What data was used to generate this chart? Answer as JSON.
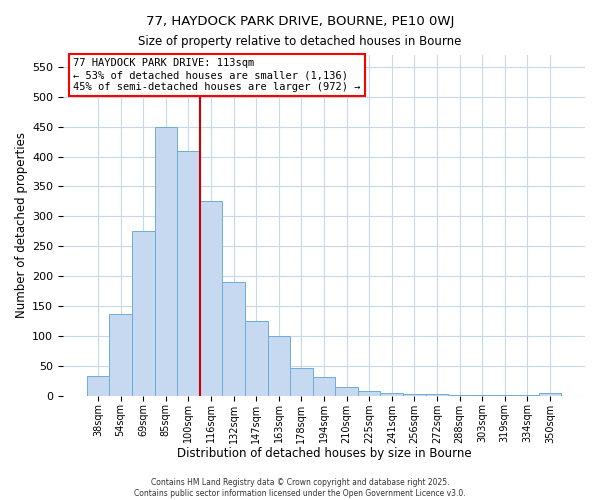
{
  "title1": "77, HAYDOCK PARK DRIVE, BOURNE, PE10 0WJ",
  "title2": "Size of property relative to detached houses in Bourne",
  "xlabel": "Distribution of detached houses by size in Bourne",
  "ylabel": "Number of detached properties",
  "bar_labels": [
    "38sqm",
    "54sqm",
    "69sqm",
    "85sqm",
    "100sqm",
    "116sqm",
    "132sqm",
    "147sqm",
    "163sqm",
    "178sqm",
    "194sqm",
    "210sqm",
    "225sqm",
    "241sqm",
    "256sqm",
    "272sqm",
    "288sqm",
    "303sqm",
    "319sqm",
    "334sqm",
    "350sqm"
  ],
  "bar_values": [
    33,
    137,
    275,
    450,
    410,
    325,
    190,
    125,
    100,
    46,
    31,
    15,
    8,
    5,
    3,
    2,
    1,
    1,
    1,
    1,
    4
  ],
  "bar_color": "#c6d9f0",
  "bar_edgecolor": "#6baed6",
  "vline_x": 4.5,
  "vline_color": "#cc0000",
  "annotation_box_text": "77 HAYDOCK PARK DRIVE: 113sqm\n← 53% of detached houses are smaller (1,136)\n45% of semi-detached houses are larger (972) →",
  "ylim": [
    0,
    570
  ],
  "yticks": [
    0,
    50,
    100,
    150,
    200,
    250,
    300,
    350,
    400,
    450,
    500,
    550
  ],
  "footer1": "Contains HM Land Registry data © Crown copyright and database right 2025.",
  "footer2": "Contains public sector information licensed under the Open Government Licence v3.0.",
  "background_color": "#ffffff",
  "grid_color": "#c8d8e8"
}
